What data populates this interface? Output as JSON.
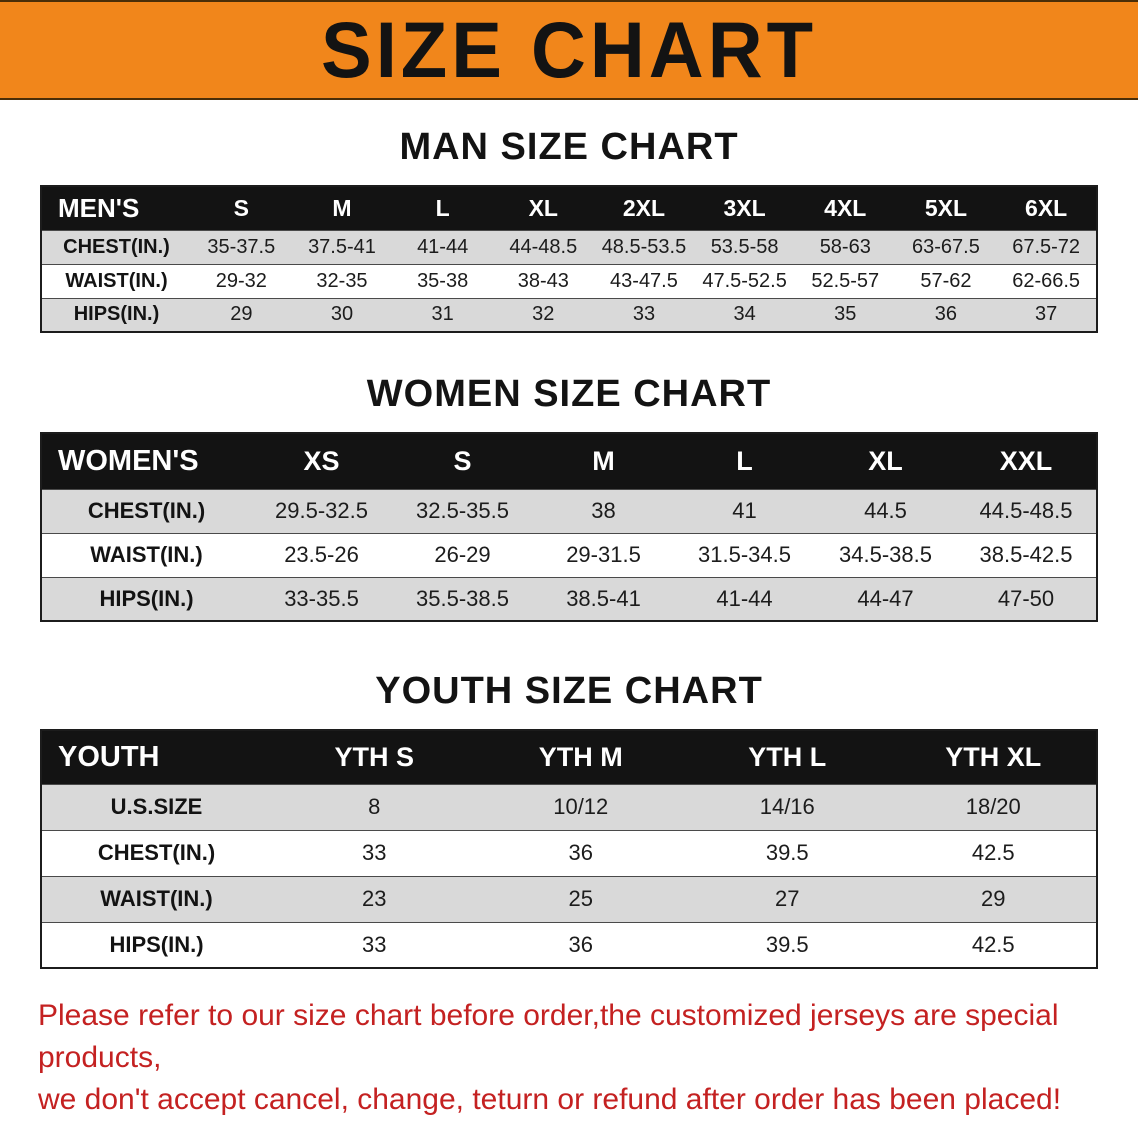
{
  "banner": {
    "title": "SIZE CHART"
  },
  "sections": [
    {
      "heading": "MAN SIZE CHART",
      "table": {
        "label_header": "MEN'S",
        "columns": [
          "S",
          "M",
          "L",
          "XL",
          "2XL",
          "3XL",
          "4XL",
          "5XL",
          "6XL"
        ],
        "rows": [
          {
            "label": "CHEST(IN.)",
            "values": [
              "35-37.5",
              "37.5-41",
              "41-44",
              "44-48.5",
              "48.5-53.5",
              "53.5-58",
              "58-63",
              "63-67.5",
              "67.5-72"
            ]
          },
          {
            "label": "WAIST(IN.)",
            "values": [
              "29-32",
              "32-35",
              "35-38",
              "38-43",
              "43-47.5",
              "47.5-52.5",
              "52.5-57",
              "57-62",
              "62-66.5"
            ]
          },
          {
            "label": "HIPS(IN.)",
            "values": [
              "29",
              "30",
              "31",
              "32",
              "33",
              "34",
              "35",
              "36",
              "37"
            ]
          }
        ]
      }
    },
    {
      "heading": "WOMEN SIZE CHART",
      "table": {
        "label_header": "WOMEN'S",
        "columns": [
          "XS",
          "S",
          "M",
          "L",
          "XL",
          "XXL"
        ],
        "rows": [
          {
            "label": "CHEST(IN.)",
            "values": [
              "29.5-32.5",
              "32.5-35.5",
              "38",
              "41",
              "44.5",
              "44.5-48.5"
            ]
          },
          {
            "label": "WAIST(IN.)",
            "values": [
              "23.5-26",
              "26-29",
              "29-31.5",
              "31.5-34.5",
              "34.5-38.5",
              "38.5-42.5"
            ]
          },
          {
            "label": "HIPS(IN.)",
            "values": [
              "33-35.5",
              "35.5-38.5",
              "38.5-41",
              "41-44",
              "44-47",
              "47-50"
            ]
          }
        ]
      }
    },
    {
      "heading": "YOUTH SIZE CHART",
      "table": {
        "label_header": "YOUTH",
        "columns": [
          "YTH S",
          "YTH M",
          "YTH L",
          "YTH XL"
        ],
        "rows": [
          {
            "label": "U.S.SIZE",
            "values": [
              "8",
              "10/12",
              "14/16",
              "18/20"
            ]
          },
          {
            "label": "CHEST(IN.)",
            "values": [
              "33",
              "36",
              "39.5",
              "42.5"
            ]
          },
          {
            "label": "WAIST(IN.)",
            "values": [
              "23",
              "25",
              "27",
              "29"
            ]
          },
          {
            "label": "HIPS(IN.)",
            "values": [
              "33",
              "36",
              "39.5",
              "42.5"
            ]
          }
        ]
      }
    }
  ],
  "footer": {
    "line1": "Please refer to our size chart before order,the customized jerseys are special products,",
    "line2": "we don't accept cancel, change, teturn or refund after order has been placed!"
  },
  "colors": {
    "banner_bg": "#f1861b",
    "header_bg": "#131313",
    "row_alt": "#d9d9d9",
    "footer_text": "#c42121"
  }
}
